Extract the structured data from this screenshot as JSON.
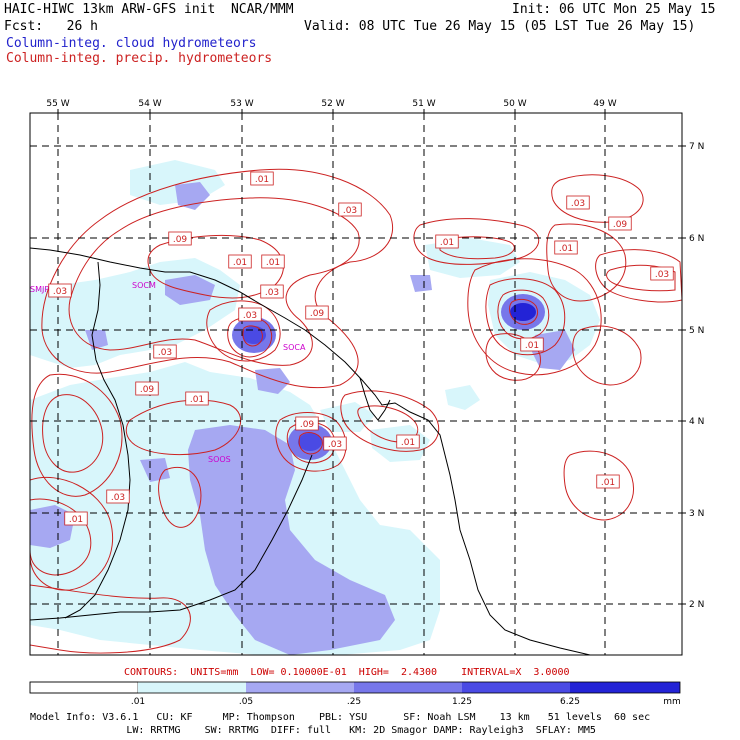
{
  "header": {
    "line1_left": "HAIC-HIWC 13km ARW-GFS init  NCAR/MMM",
    "line1_right": "Init: 06 UTC Mon 25 May 15",
    "line2_left": "Fcst:   26 h",
    "line2_right": "Valid: 08 UTC Tue 26 May 15 (05 LST Tue 26 May 15)",
    "line3": "Column-integ. cloud hydrometeors",
    "line4": "Column-integ. precip. hydrometeors"
  },
  "map": {
    "lon_labels": [
      "55 W",
      "54 W",
      "53 W",
      "52 W",
      "51 W",
      "50 W",
      "49 W"
    ],
    "lat_labels": [
      "7 N",
      "6 N",
      "5 N",
      "4 N",
      "3 N",
      "2 N"
    ],
    "stations": [
      "SMJP",
      "SOCM",
      "SOCA",
      "SOOS"
    ],
    "contour_labels": [
      ".01",
      ".03",
      ".09",
      ".01",
      ".01",
      ".03",
      ".09",
      ".03",
      ".01",
      ".03",
      ".09",
      ".01",
      ".03",
      ".01",
      ".03",
      ".09",
      ".01",
      ".09",
      ".03",
      ".01",
      ".01",
      ".03",
      ".01",
      ".03",
      ".01"
    ],
    "colors": {
      "cloud_fill_1": "#d8f6fb",
      "cloud_fill_2": "#a6a8f2",
      "cloud_fill_3": "#7777ea",
      "cloud_fill_4": "#3c3cdd",
      "precip_contour": "#cc2222",
      "coast": "#000000",
      "station": "#cc00cc"
    }
  },
  "legend": {
    "contours_line": "CONTOURS:  UNITS=mm  LOW= 0.10000E-01  HIGH=  2.4300    INTERVAL=X  3.0000",
    "ticks": [
      ".01",
      ".05",
      ".25",
      "1.25",
      "6.25"
    ],
    "unit": "mm",
    "colors": [
      "#ffffff",
      "#d8f6fb",
      "#a6a8f2",
      "#7777ea",
      "#4a4ae4",
      "#2323d6"
    ]
  },
  "footer": {
    "line1": "Model Info: V3.6.1   CU: KF     MP: Thompson    PBL: YSU      SF: Noah LSM    13 km   51 levels  60 sec",
    "line2": "                LW: RRTMG    SW: RRTMG  DIFF: full   KM: 2D Smagor DAMP: Rayleigh3  SFLAY: MM5"
  }
}
